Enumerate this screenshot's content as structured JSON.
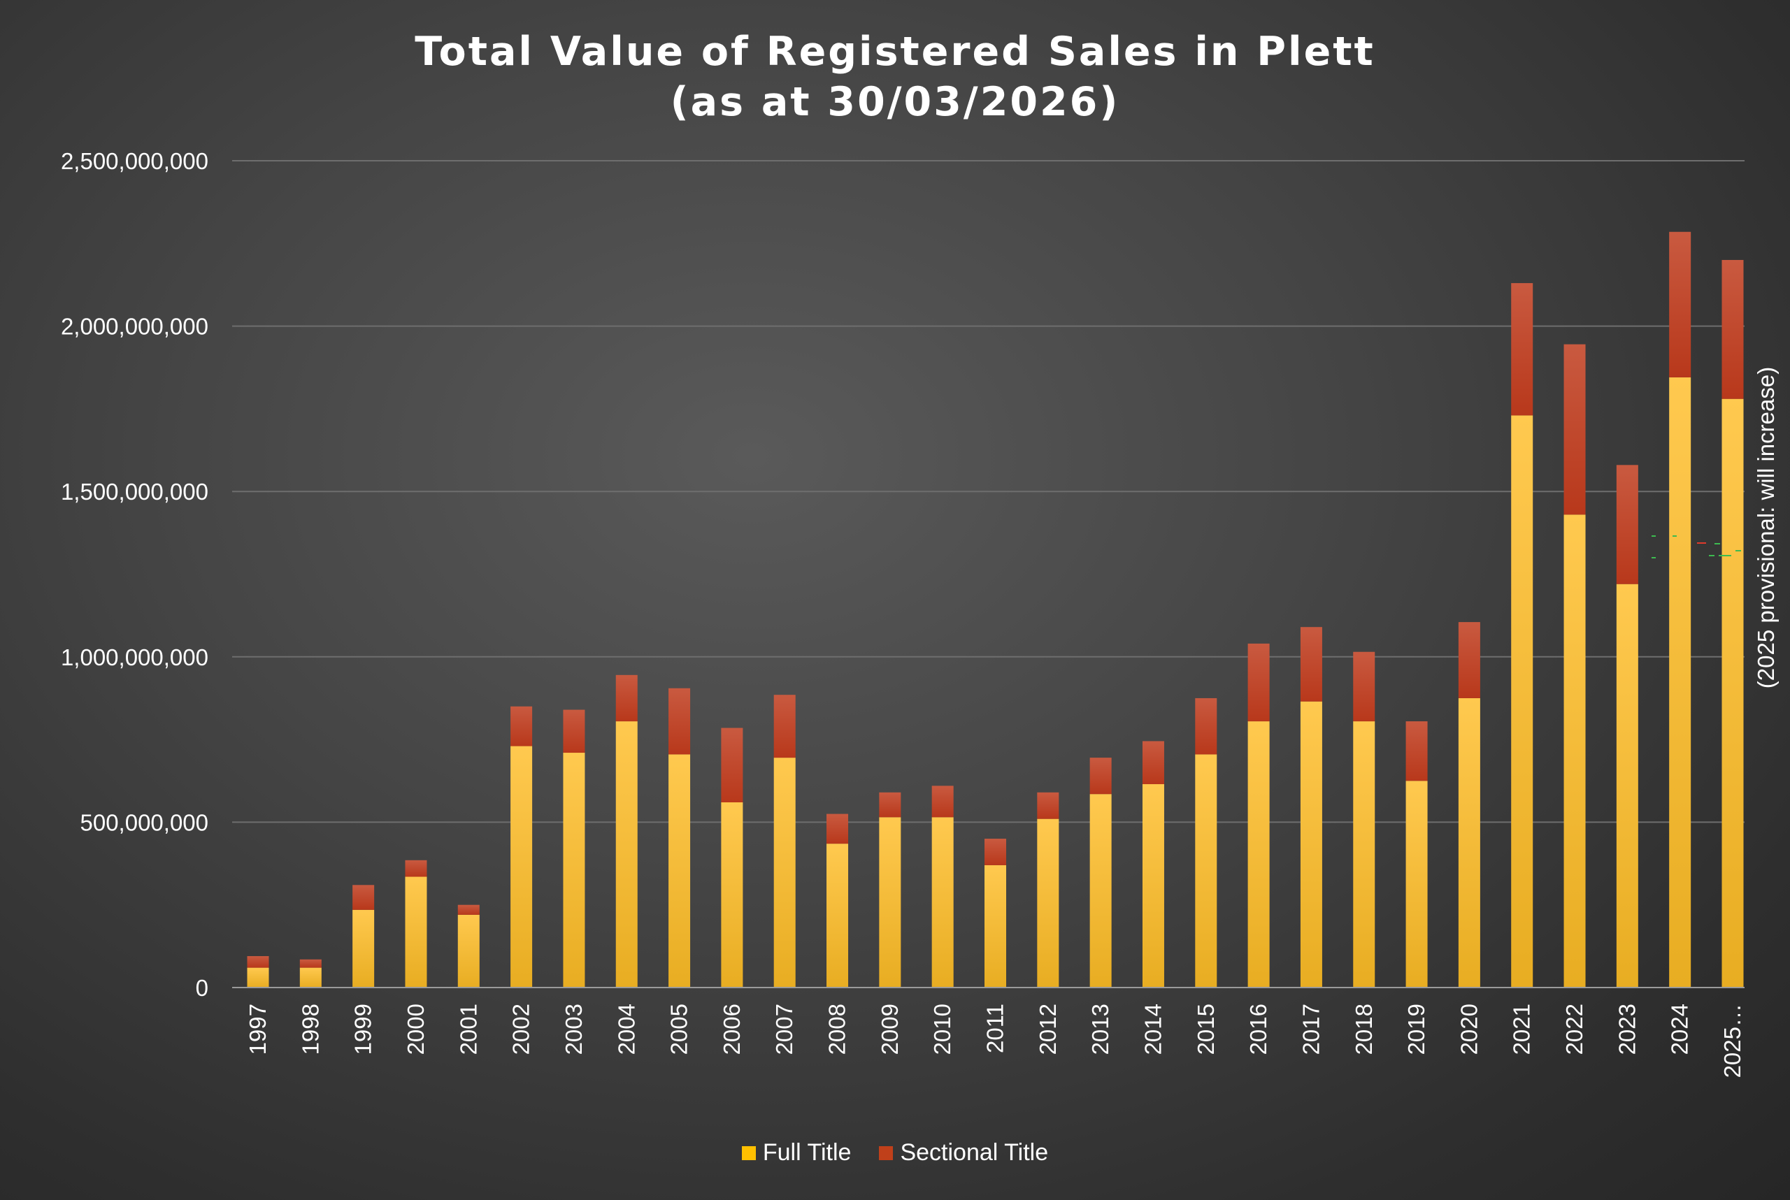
{
  "chart_data": {
    "type": "bar",
    "stacked": true,
    "title": "Total Value of Registered Sales in Plett",
    "subtitle": "(as at 30/03/2026)",
    "categories": [
      "1997",
      "1998",
      "1999",
      "2000",
      "2001",
      "2002",
      "2003",
      "2004",
      "2005",
      "2006",
      "2007",
      "2008",
      "2009",
      "2010",
      "2011",
      "2012",
      "2013",
      "2014",
      "2015",
      "2016",
      "2017",
      "2018",
      "2019",
      "2020",
      "2021",
      "2022",
      "2023",
      "2024",
      "2025…"
    ],
    "series": [
      {
        "name": "Full Title",
        "color": "#ffc000",
        "values": [
          60000000,
          60000000,
          235000000,
          335000000,
          220000000,
          730000000,
          710000000,
          805000000,
          705000000,
          560000000,
          695000000,
          435000000,
          515000000,
          515000000,
          370000000,
          510000000,
          585000000,
          615000000,
          705000000,
          805000000,
          865000000,
          805000000,
          625000000,
          875000000,
          1730000000,
          1430000000,
          1220000000,
          1845000000,
          1780000000
        ]
      },
      {
        "name": "Sectional Title",
        "color": "#c0401a",
        "values": [
          35000000,
          25000000,
          75000000,
          50000000,
          30000000,
          120000000,
          130000000,
          140000000,
          200000000,
          225000000,
          190000000,
          90000000,
          75000000,
          95000000,
          80000000,
          80000000,
          110000000,
          130000000,
          170000000,
          235000000,
          225000000,
          210000000,
          180000000,
          230000000,
          400000000,
          515000000,
          360000000,
          440000000,
          420000000
        ]
      }
    ],
    "ylim": [
      0,
      2500000000
    ],
    "yticks": [
      "0",
      "500,000,000",
      "1,000,000,000",
      "1,500,000,000",
      "2,000,000,000",
      "2,500,000,000"
    ],
    "ytick_values": [
      0,
      500000000,
      1000000000,
      1500000000,
      2000000000,
      2500000000
    ],
    "annotation": "(2025 provisional: will increase)",
    "legend_position": "bottom",
    "grid": true
  }
}
